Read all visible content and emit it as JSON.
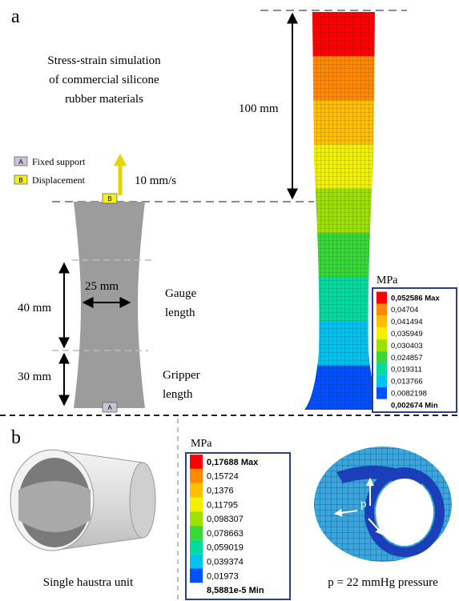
{
  "panel_a": {
    "label": "a",
    "title_lines": [
      "Stress-strain simulation",
      "of commercial silicone",
      "rubber materials"
    ],
    "support_items": [
      {
        "badge": "A",
        "text": "Fixed support"
      },
      {
        "badge": "B",
        "text": "Displacement"
      }
    ],
    "speed": "10 mm/s",
    "top_badge": "B",
    "bottom_badge": "A",
    "width_dim": "25 mm",
    "gauge_lines": [
      "Gauge",
      "length"
    ],
    "gauge_dim": "40 mm",
    "gripper_dim": "30 mm",
    "gripper_lines": [
      "Gripper",
      "length"
    ],
    "length_dim": "100 mm",
    "scale": {
      "unit": "MPa",
      "labels": [
        "0,052586 Max",
        "0,04704",
        "0,041494",
        "0,035949",
        "0,030403",
        "0,024857",
        "0,019311",
        "0,013766",
        "0,0082198",
        "0,002674 Min"
      ]
    }
  },
  "panel_b": {
    "label": "b",
    "unit_caption": "Single haustra unit",
    "pressure_symbol": "p",
    "pressure_caption": "p = 22 mmHg pressure",
    "scale": {
      "unit": "MPa",
      "labels": [
        "0,17688 Max",
        "0,15724",
        "0,1376",
        "0,11795",
        "0,098307",
        "0,078663",
        "0,059019",
        "0,039374",
        "0,01973",
        "8,5881e-5 Min"
      ]
    }
  }
}
